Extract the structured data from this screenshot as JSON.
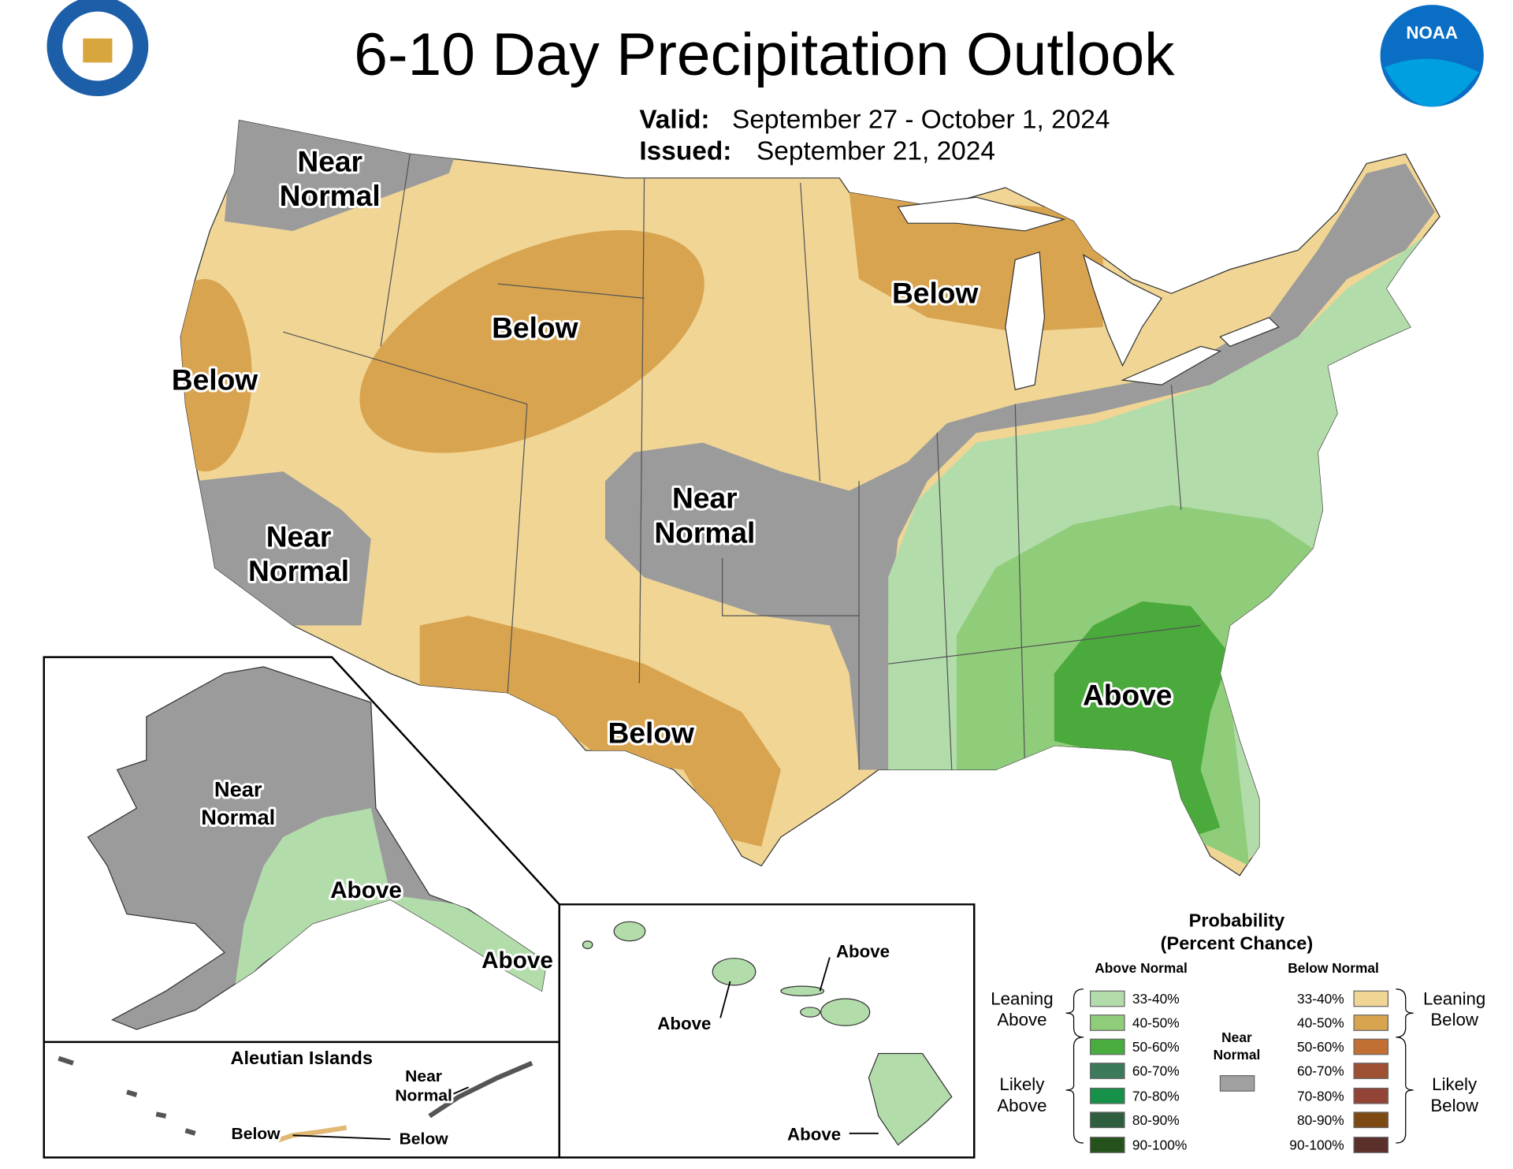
{
  "header": {
    "title": "6-10 Day Precipitation Outlook",
    "valid_label": "Valid:",
    "valid": "September 27 - October 1, 2024",
    "issued_label": "Issued:",
    "issued": "September 21, 2024",
    "noaa": "NOAA"
  },
  "map_labels": [
    {
      "lines": [
        "Near",
        "Normal"
      ]
    },
    {
      "lines": [
        "Below"
      ]
    },
    {
      "lines": [
        "Below"
      ]
    },
    {
      "lines": [
        "Below"
      ]
    },
    {
      "lines": [
        "Near",
        "Normal"
      ]
    },
    {
      "lines": [
        "Near",
        "Normal"
      ]
    },
    {
      "lines": [
        "Below"
      ]
    },
    {
      "lines": [
        "Above"
      ]
    }
  ],
  "alaska_labels": [
    {
      "lines": [
        "Near",
        "Normal"
      ]
    },
    {
      "lines": [
        "Above"
      ]
    },
    {
      "lines": [
        "Above"
      ]
    }
  ],
  "hawaii_labels": [
    {
      "lines": [
        "Above"
      ]
    },
    {
      "lines": [
        "Above"
      ]
    },
    {
      "lines": [
        "Above"
      ]
    }
  ],
  "aleutian": {
    "title": "Aleutian Islands",
    "labels": [
      {
        "lines": [
          "Near",
          "Normal"
        ]
      },
      {
        "lines": [
          "Below"
        ]
      },
      {
        "lines": [
          "Below"
        ]
      }
    ]
  },
  "legend": {
    "title": "Probability",
    "subtitle": "(Percent Chance)",
    "above_header": "Above Normal",
    "below_header": "Below Normal",
    "above": [
      {
        "range": "33-40%",
        "color": "#b3dcab"
      },
      {
        "range": "40-50%",
        "color": "#90cd7b"
      },
      {
        "range": "50-60%",
        "color": "#48ad3e"
      },
      {
        "range": "60-70%",
        "color": "#3b7a5a"
      },
      {
        "range": "70-80%",
        "color": "#15914a"
      },
      {
        "range": "80-90%",
        "color": "#2e5e3e"
      },
      {
        "range": "90-100%",
        "color": "#25521b"
      }
    ],
    "below": [
      {
        "range": "33-40%",
        "color": "#f0d595"
      },
      {
        "range": "40-50%",
        "color": "#d9a44f"
      },
      {
        "range": "50-60%",
        "color": "#c26f33"
      },
      {
        "range": "60-70%",
        "color": "#a05032"
      },
      {
        "range": "70-80%",
        "color": "#944437"
      },
      {
        "range": "80-90%",
        "color": "#7e4a14"
      },
      {
        "range": "90-100%",
        "color": "#5b2f2a"
      }
    ],
    "leaning_above": [
      "Leaning",
      "Above"
    ],
    "likely_above": [
      "Likely",
      "Above"
    ],
    "leaning_below": [
      "Leaning",
      "Below"
    ],
    "likely_below": [
      "Likely",
      "Below"
    ],
    "near_normal": [
      "Near",
      "Normal"
    ],
    "near_color": "#a0a0a0"
  }
}
